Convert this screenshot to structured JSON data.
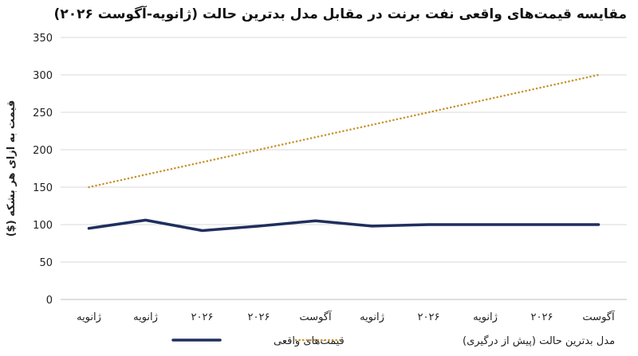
{
  "chart_data": {
    "type": "line",
    "title": "مقایسه قیمت‌های واقعی نفت برنت در مقابل مدل بدترین حالت (ژانویه-آگوست ۲۰۲۶)",
    "xlabel": "",
    "ylabel": "قیمت به ازای هر بشکه ($)",
    "categories": [
      "ژانویه",
      "ژانویه",
      "۲۰۲۶",
      "۲۰۲۶",
      "آگوست",
      "ژانویه",
      "۲۰۲۶",
      "ژانویه",
      "۲۰۲۶",
      "آگوست"
    ],
    "ylim": [
      0,
      350
    ],
    "yticks": [
      0,
      50,
      100,
      150,
      200,
      250,
      300,
      350
    ],
    "grid": true,
    "legend_position": "bottom",
    "series": [
      {
        "name": "قیمت‌های واقعی",
        "color": "#1f2f5e",
        "style": "solid",
        "values": [
          95,
          106,
          92,
          98,
          105,
          98,
          100,
          100,
          100,
          100
        ]
      },
      {
        "name": "مدل بدترین حالت (پیش از درگیری)",
        "color": "#c8922a",
        "style": "dotted",
        "values": [
          150,
          166.7,
          183.3,
          200,
          216.7,
          233.3,
          250,
          266.7,
          283.3,
          300
        ]
      }
    ]
  }
}
